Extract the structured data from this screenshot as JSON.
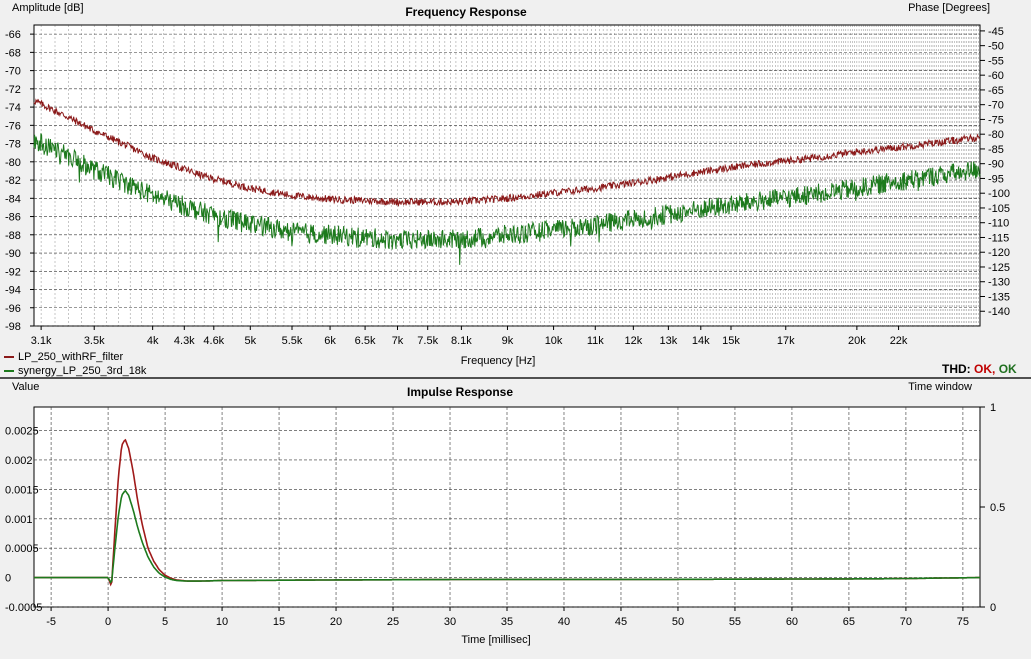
{
  "chart_data": [
    {
      "type": "line",
      "title": "Frequency Response",
      "xlabel": "Frequency [Hz]",
      "ylabel": "Amplitude [dB]",
      "y2label": "Phase [Degrees]",
      "xscale": "log",
      "xlim": [
        3050,
        26500
      ],
      "ylim": [
        -98,
        -65
      ],
      "y2lim": [
        -145,
        -43
      ],
      "grid": true,
      "x_tick_labels": [
        {
          "v": 3100,
          "t": "3.1k"
        },
        {
          "v": 3500,
          "t": "3.5k"
        },
        {
          "v": 4000,
          "t": "4k"
        },
        {
          "v": 4300,
          "t": "4.3k"
        },
        {
          "v": 4600,
          "t": "4.6k"
        },
        {
          "v": 5000,
          "t": "5k"
        },
        {
          "v": 5500,
          "t": "5.5k"
        },
        {
          "v": 6000,
          "t": "6k"
        },
        {
          "v": 6500,
          "t": "6.5k"
        },
        {
          "v": 7000,
          "t": "7k"
        },
        {
          "v": 7500,
          "t": "7.5k"
        },
        {
          "v": 8100,
          "t": "8.1k"
        },
        {
          "v": 9000,
          "t": "9k"
        },
        {
          "v": 10000,
          "t": "10k"
        },
        {
          "v": 11000,
          "t": "11k"
        },
        {
          "v": 12000,
          "t": "12k"
        },
        {
          "v": 13000,
          "t": "13k"
        },
        {
          "v": 14000,
          "t": "14k"
        },
        {
          "v": 15000,
          "t": "15k"
        },
        {
          "v": 17000,
          "t": "17k"
        },
        {
          "v": 20000,
          "t": "20k"
        },
        {
          "v": 22000,
          "t": "22k"
        }
      ],
      "y_ticks": [
        -66,
        -68,
        -70,
        -72,
        -74,
        -76,
        -78,
        -80,
        -82,
        -84,
        -86,
        -88,
        -90,
        -92,
        -94,
        -96,
        -98
      ],
      "y2_ticks": [
        -45,
        -50,
        -55,
        -60,
        -65,
        -70,
        -75,
        -80,
        -85,
        -90,
        -95,
        -100,
        -105,
        -110,
        -115,
        -120,
        -125,
        -130,
        -135,
        -140
      ],
      "series": [
        {
          "name": "LP_250_withRF_filter",
          "color": "#8b1a1a",
          "x": [
            3050,
            3500,
            4000,
            4500,
            5000,
            5500,
            6000,
            7000,
            8000,
            9000,
            10000,
            11000,
            12000,
            14000,
            16000,
            18000,
            20000,
            22000,
            24000,
            26500
          ],
          "y": [
            -73.3,
            -76.6,
            -79.6,
            -81.6,
            -82.9,
            -83.7,
            -84.1,
            -84.4,
            -84.4,
            -84.0,
            -83.4,
            -82.9,
            -82.3,
            -81.1,
            -80.2,
            -79.6,
            -78.9,
            -78.4,
            -77.9,
            -77.3
          ],
          "noise": 0.4
        },
        {
          "name": "synergy_LP_250_3rd_18k",
          "color": "#1d7a1d",
          "x": [
            3050,
            3500,
            4000,
            4500,
            5000,
            5500,
            6000,
            7000,
            8000,
            9000,
            10000,
            11000,
            12000,
            14000,
            16000,
            18000,
            20000,
            22000,
            24000,
            26500
          ],
          "y": [
            -77.6,
            -80.9,
            -83.7,
            -85.6,
            -86.8,
            -87.7,
            -88.0,
            -88.6,
            -88.5,
            -88.0,
            -87.5,
            -86.9,
            -86.3,
            -85.2,
            -84.3,
            -83.6,
            -82.9,
            -82.1,
            -81.5,
            -80.8
          ],
          "noise": 1.1
        }
      ]
    },
    {
      "type": "line",
      "title": "Impulse Response",
      "xlabel": "Time [millisec]",
      "ylabel": "Value",
      "y2label": "Time window",
      "xlim": [
        -6.5,
        76.5
      ],
      "ylim": [
        -0.0005,
        0.0029
      ],
      "y2lim": [
        0,
        1
      ],
      "grid": true,
      "x_ticks": [
        -5,
        0,
        5,
        10,
        15,
        20,
        25,
        30,
        35,
        40,
        45,
        50,
        55,
        60,
        65,
        70,
        75
      ],
      "y_tick_labels": [
        {
          "v": 0.0025,
          "t": "0.0025"
        },
        {
          "v": 0.002,
          "t": "0.002"
        },
        {
          "v": 0.0015,
          "t": "0.0015"
        },
        {
          "v": 0.001,
          "t": "0.001"
        },
        {
          "v": 0.0005,
          "t": "0.0005"
        },
        {
          "v": 0,
          "t": "0"
        },
        {
          "v": -0.0005,
          "t": "-0.0005"
        }
      ],
      "y2_ticks": [
        {
          "v": 1,
          "t": "1"
        },
        {
          "v": 0.5,
          "t": "0.5"
        },
        {
          "v": 0,
          "t": "0"
        }
      ],
      "series": [
        {
          "name": "LP_250_withRF_filter",
          "color": "#a01a1a",
          "x": [
            -6.5,
            0,
            0.3,
            0.6,
            0.9,
            1.2,
            1.5,
            1.8,
            2.2,
            2.6,
            3.0,
            3.5,
            4.0,
            4.5,
            5.0,
            5.5,
            6.0,
            7.0,
            8.0,
            10,
            20,
            35,
            50,
            68,
            76.5
          ],
          "y": [
            0,
            0,
            -0.00015,
            0.0008,
            0.0017,
            0.00225,
            0.00235,
            0.0022,
            0.0018,
            0.0013,
            0.0009,
            0.0005,
            0.00028,
            0.00013,
            4e-05,
            -1e-05,
            -4e-05,
            -6e-05,
            -6e-05,
            -5e-05,
            -4e-05,
            -3e-05,
            -3e-05,
            -2e-05,
            0
          ]
        },
        {
          "name": "synergy_LP_250_3rd_18k",
          "color": "#1d7a1d",
          "x": [
            -6.5,
            0,
            0.3,
            0.6,
            0.9,
            1.2,
            1.5,
            1.8,
            2.2,
            2.6,
            3.0,
            3.5,
            4.0,
            4.5,
            5.0,
            5.5,
            6.0,
            7.0,
            8.0,
            10,
            20,
            35,
            50,
            68,
            76.5
          ],
          "y": [
            0,
            0,
            -0.0001,
            0.0005,
            0.00105,
            0.0014,
            0.00148,
            0.0014,
            0.00115,
            0.00085,
            0.0006,
            0.00035,
            0.00018,
            7e-05,
            1e-05,
            -3e-05,
            -5e-05,
            -6e-05,
            -6e-05,
            -5e-05,
            -4e-05,
            -3e-05,
            -3e-05,
            -2e-05,
            0
          ]
        }
      ]
    }
  ],
  "legend": [
    {
      "label": "LP_250_withRF_filter",
      "color": "#8b1a1a"
    },
    {
      "label": "synergy_LP_250_3rd_18k",
      "color": "#1d7a1d"
    }
  ],
  "thd": {
    "label": "THD:",
    "val1": "OK",
    "sep": ",",
    "val2": "OK"
  }
}
